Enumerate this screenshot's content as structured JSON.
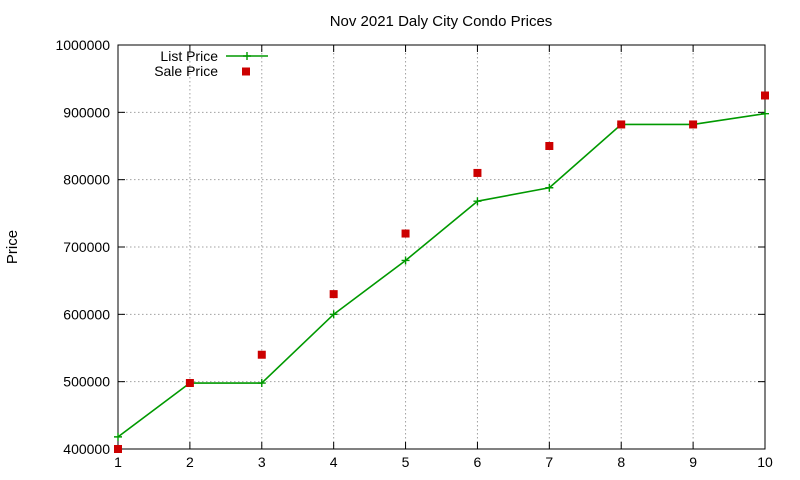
{
  "chart_data": {
    "type": "line",
    "title": "Nov 2021 Daly City Condo Prices",
    "xlabel": "",
    "ylabel": "Price",
    "x": [
      1,
      2,
      3,
      4,
      5,
      6,
      7,
      8,
      9,
      10
    ],
    "xlim": [
      1,
      10
    ],
    "ylim": [
      400000,
      1000000
    ],
    "xticks": [
      "1",
      "2",
      "3",
      "4",
      "5",
      "6",
      "7",
      "8",
      "9",
      "10"
    ],
    "yticks": [
      "400000",
      "500000",
      "600000",
      "700000",
      "800000",
      "900000",
      "1000000"
    ],
    "ytick_values": [
      400000,
      500000,
      600000,
      700000,
      800000,
      900000,
      1000000
    ],
    "grid": true,
    "legend_position": "top-left",
    "series": [
      {
        "name": "List Price",
        "style": "line with cross markers",
        "color": "#009900",
        "values": [
          418000,
          498000,
          498000,
          600000,
          680000,
          768000,
          788000,
          882000,
          882000,
          898000
        ]
      },
      {
        "name": "Sale Price",
        "style": "square markers",
        "color": "#cc0000",
        "values": [
          400000,
          498000,
          540000,
          630000,
          720000,
          810000,
          850000,
          882000,
          882000,
          925000
        ]
      }
    ]
  }
}
